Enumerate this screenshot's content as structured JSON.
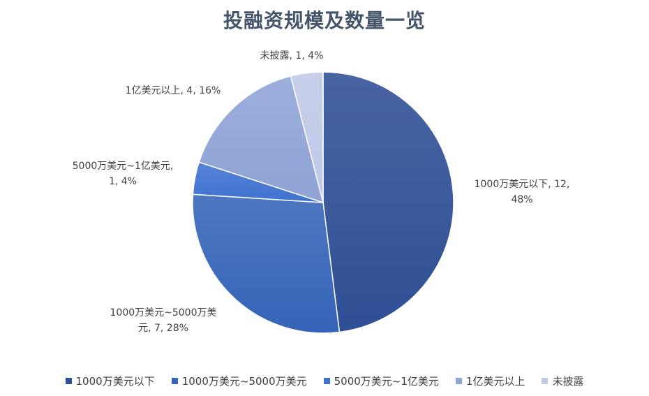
{
  "chart_data": {
    "type": "pie",
    "title": "投融资规模及数量一览",
    "categories": [
      "1000万美元以下",
      "1000万美元~5000万美元",
      "5000万美元~1亿美元",
      "1亿美元以上",
      "未披露"
    ],
    "values": [
      12,
      7,
      1,
      4,
      1
    ],
    "percent_labels": [
      "48%",
      "28%",
      "4%",
      "16%",
      "4%"
    ],
    "colors": [
      "#2F4F95",
      "#3564B8",
      "#3F72D0",
      "#8FA3D6",
      "#BFC8E6"
    ],
    "data_labels": [
      [
        "1000万美元以下, 12,",
        "48%"
      ],
      [
        "1000万美元~5000万美",
        "元, 7, 28%"
      ],
      [
        "5000万美元~1亿美元,",
        "1, 4%"
      ],
      [
        "1亿美元以上, 4, 16%"
      ],
      [
        "未披露, 1, 4%"
      ]
    ],
    "legend_position": "bottom"
  }
}
